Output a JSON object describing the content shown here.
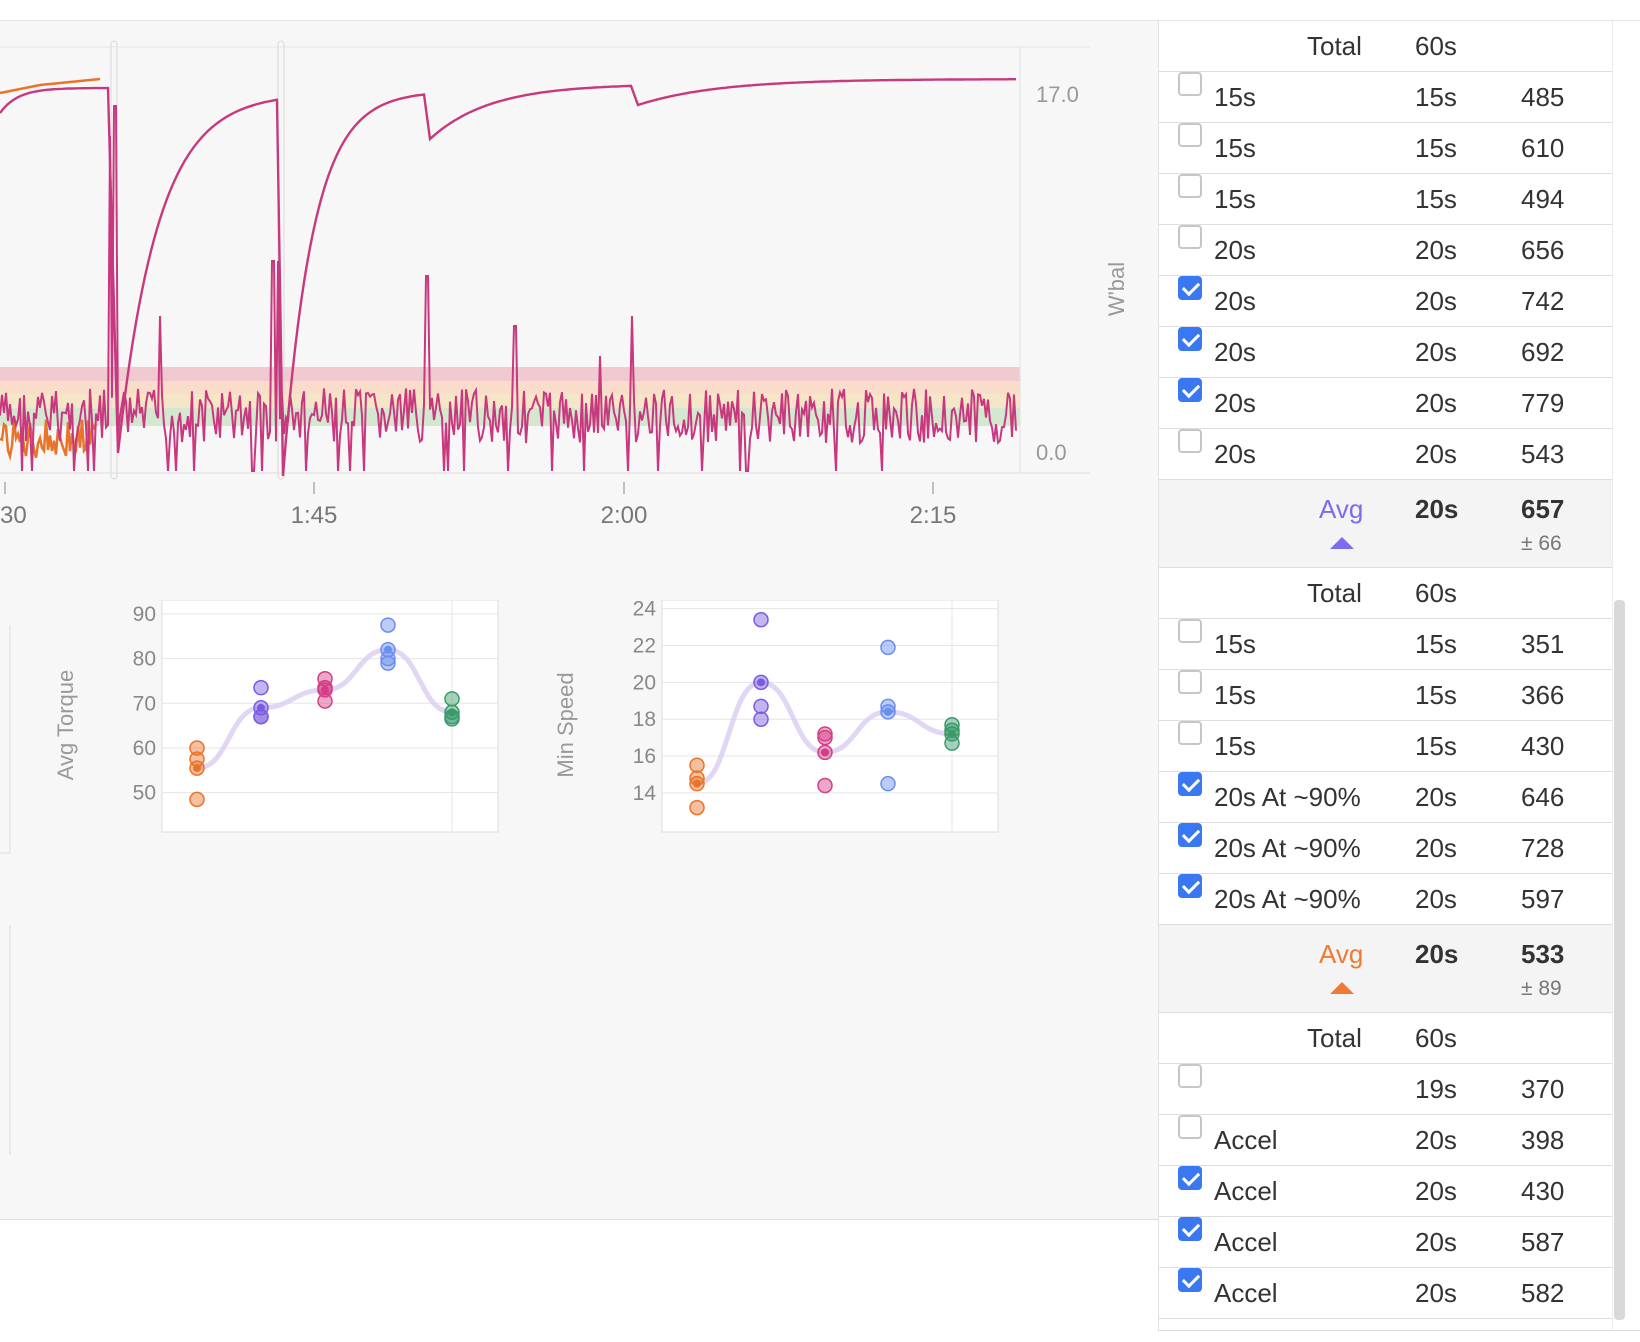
{
  "main_chart": {
    "y_label": "W'bal",
    "y_ticks": [
      "17.0",
      "0.0"
    ],
    "x_ticks": [
      "30",
      "1:45",
      "2:00",
      "2:15"
    ],
    "colors": {
      "power": "#c8387e",
      "other": "#e8742a",
      "zone_red": "#f1c9d0",
      "zone_yellow": "#f6e6c8",
      "zone_green": "#d4e8cf"
    }
  },
  "torque_chart": {
    "ylabel": "Avg Torque",
    "yticks": [
      "90",
      "80",
      "70",
      "60",
      "50"
    ]
  },
  "speed_chart": {
    "ylabel": "Min Speed",
    "yticks": [
      "24",
      "22",
      "20",
      "18",
      "16",
      "14"
    ]
  },
  "chart_data": [
    {
      "type": "scatter",
      "ylabel": "Avg Torque",
      "ylim": [
        45,
        92
      ],
      "series": [
        {
          "color": "#e8742a",
          "values": [
            60,
            57.5,
            55.5,
            48.5
          ]
        },
        {
          "color": "#7b5ce0",
          "values": [
            73.5,
            69,
            67,
            67
          ]
        },
        {
          "color": "#d43d85",
          "values": [
            75.5,
            73.5,
            73,
            70.5
          ]
        },
        {
          "color": "#6b8df0",
          "values": [
            87.5,
            82,
            80,
            79
          ]
        },
        {
          "color": "#3a9a6a",
          "values": [
            71,
            68,
            67,
            66.5
          ]
        }
      ],
      "trend": [
        55.5,
        69,
        73,
        82,
        68
      ]
    },
    {
      "type": "scatter",
      "ylabel": "Min Speed",
      "ylim": [
        12.8,
        24.2
      ],
      "series": [
        {
          "color": "#e8742a",
          "values": [
            15.5,
            14.8,
            14.5,
            13.2
          ]
        },
        {
          "color": "#7b5ce0",
          "values": [
            23.4,
            20,
            18.7,
            18
          ]
        },
        {
          "color": "#d43d85",
          "values": [
            17.2,
            17,
            16.2,
            14.4
          ]
        },
        {
          "color": "#6b8df0",
          "values": [
            21.9,
            18.7,
            18.4,
            14.5
          ]
        },
        {
          "color": "#3a9a6a",
          "values": [
            17.7,
            17.4,
            17.2,
            16.7
          ]
        }
      ],
      "trend": [
        14.5,
        20,
        16.2,
        18.4,
        17.2
      ]
    }
  ],
  "groups": [
    {
      "total_label": "Total",
      "total_duration": "60s",
      "rows": [
        {
          "name": "15s",
          "duration": "15s",
          "value": "485",
          "checked": false
        },
        {
          "name": "15s",
          "duration": "15s",
          "value": "610",
          "checked": false
        },
        {
          "name": "15s",
          "duration": "15s",
          "value": "494",
          "checked": false
        },
        {
          "name": "20s",
          "duration": "20s",
          "value": "656",
          "checked": false
        },
        {
          "name": "20s",
          "duration": "20s",
          "value": "742",
          "checked": true
        },
        {
          "name": "20s",
          "duration": "20s",
          "value": "692",
          "checked": true
        },
        {
          "name": "20s",
          "duration": "20s",
          "value": "779",
          "checked": true
        },
        {
          "name": "20s",
          "duration": "20s",
          "value": "543",
          "checked": false
        }
      ],
      "avg": {
        "label": "Avg",
        "duration": "20s",
        "value": "657",
        "sd": "± 66",
        "color": "#7b6cf0"
      }
    },
    {
      "total_label": "Total",
      "total_duration": "60s",
      "rows": [
        {
          "name": "15s",
          "duration": "15s",
          "value": "351",
          "checked": false
        },
        {
          "name": "15s",
          "duration": "15s",
          "value": "366",
          "checked": false
        },
        {
          "name": "15s",
          "duration": "15s",
          "value": "430",
          "checked": false
        },
        {
          "name": "20s At ~90%",
          "duration": "20s",
          "value": "646",
          "checked": true
        },
        {
          "name": "20s At ~90%",
          "duration": "20s",
          "value": "728",
          "checked": true
        },
        {
          "name": "20s At ~90%",
          "duration": "20s",
          "value": "597",
          "checked": true
        }
      ],
      "avg": {
        "label": "Avg",
        "duration": "20s",
        "value": "533",
        "sd": "± 89",
        "color": "#ef7a34"
      }
    },
    {
      "total_label": "Total",
      "total_duration": "60s",
      "rows": [
        {
          "name": "",
          "duration": "19s",
          "value": "370",
          "checked": false
        },
        {
          "name": "Accel",
          "duration": "20s",
          "value": "398",
          "checked": false
        },
        {
          "name": "Accel",
          "duration": "20s",
          "value": "430",
          "checked": true
        },
        {
          "name": "Accel",
          "duration": "20s",
          "value": "587",
          "checked": true
        },
        {
          "name": "Accel",
          "duration": "20s",
          "value": "582",
          "checked": true
        }
      ]
    }
  ]
}
